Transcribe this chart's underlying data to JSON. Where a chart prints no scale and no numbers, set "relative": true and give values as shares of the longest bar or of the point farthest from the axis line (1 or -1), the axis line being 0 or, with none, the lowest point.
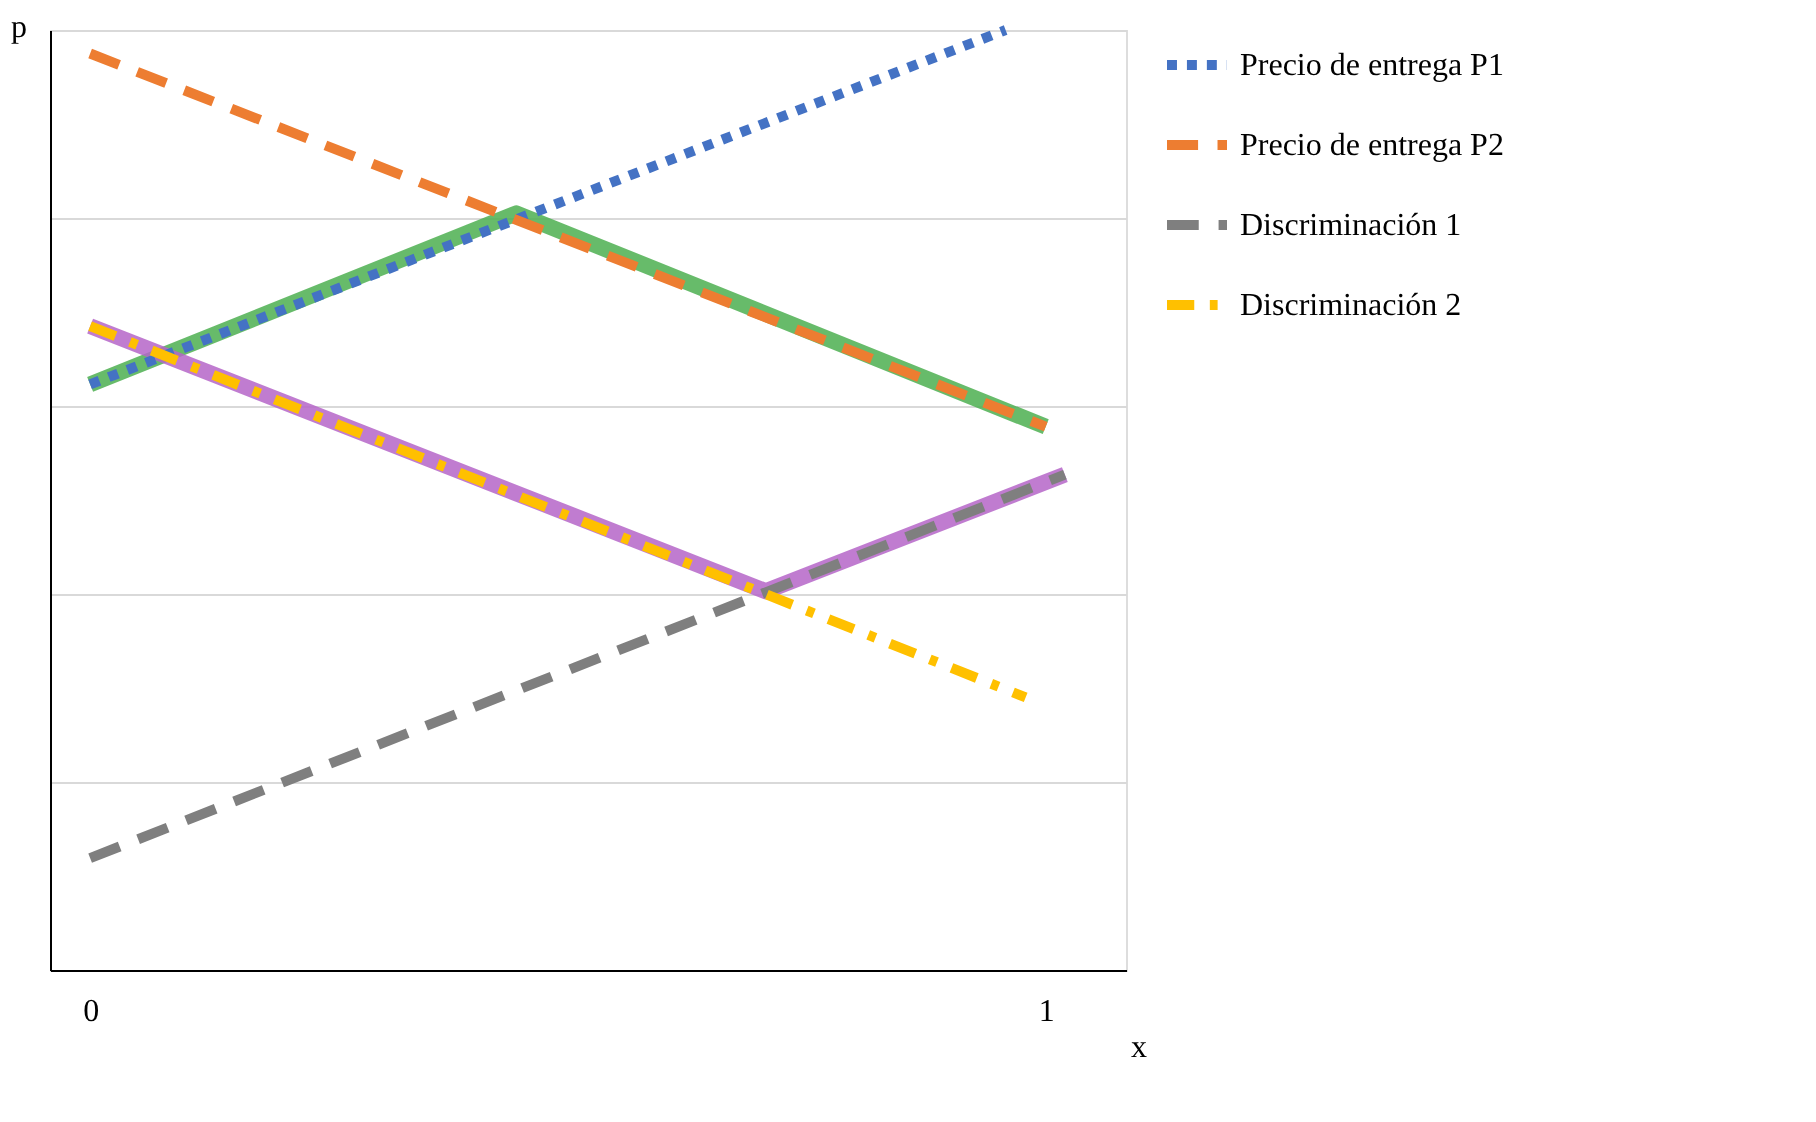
{
  "chart_data": {
    "type": "line",
    "relative": true,
    "xlabel": "x",
    "ylabel": "p",
    "xlim": [
      -0.042,
      1.084
    ],
    "xticks": [
      0,
      1
    ],
    "grid": "y",
    "legend": "right",
    "series": [
      {
        "name": "Precio de entrega P1",
        "color": "#4472c4",
        "line_style": "dotted",
        "x": [
          0,
          0.958
        ],
        "values": [
          0.623,
          1.0
        ]
      },
      {
        "name": "Precio de entrega P2",
        "color": "#ed7d31",
        "line_style": "dashed",
        "x": [
          0,
          1.0
        ],
        "values": [
          0.975,
          0.578
        ]
      },
      {
        "name": "Discriminación 1",
        "color": "#7f7f7f",
        "line_style": "dashed",
        "x": [
          0,
          1.02
        ],
        "values": [
          0.119,
          0.527
        ]
      },
      {
        "name": "Discriminación 2",
        "color": "#ffc000",
        "line_style": "dashdot",
        "x": [
          0,
          0.979
        ],
        "values": [
          0.685,
          0.29
        ]
      },
      {
        "color": "#4caf50",
        "line_style": "solid",
        "x": [
          0,
          0.446,
          1.0
        ],
        "values": [
          0.623,
          0.805,
          0.578
        ]
      },
      {
        "color": "#b565c8",
        "line_style": "solid",
        "x": [
          0,
          0.707,
          1.02
        ],
        "values": [
          0.685,
          0.403,
          0.527
        ]
      }
    ]
  }
}
